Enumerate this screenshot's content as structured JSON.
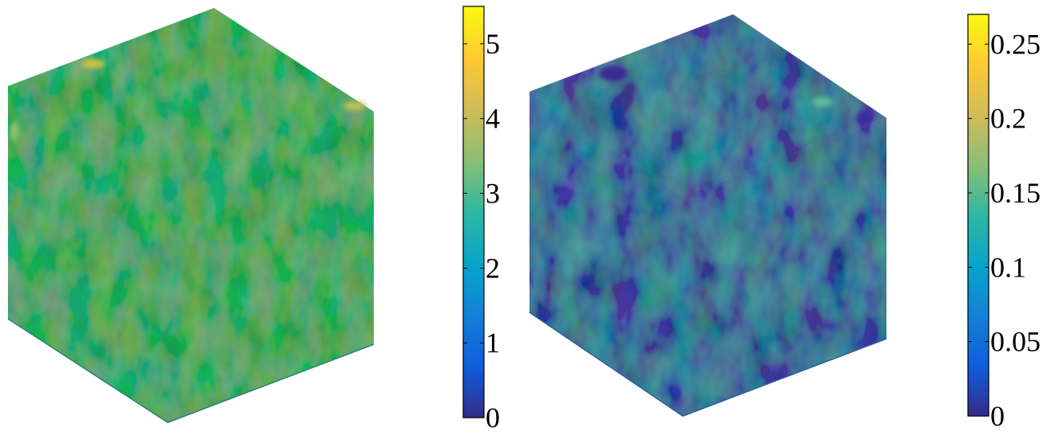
{
  "figure": {
    "panels": [
      {
        "name": "left-cube",
        "colorbar": {
          "range": [
            0,
            5.5
          ],
          "ticks": [
            {
              "value": 0,
              "label": "0"
            },
            {
              "value": 1,
              "label": "1"
            },
            {
              "value": 2,
              "label": "2"
            },
            {
              "value": 3,
              "label": "3"
            },
            {
              "value": 4,
              "label": "4"
            },
            {
              "value": 5,
              "label": "5"
            }
          ]
        },
        "base_color": "#2ab0b5"
      },
      {
        "name": "right-cube",
        "colorbar": {
          "range": [
            0,
            0.27
          ],
          "ticks": [
            {
              "value": 0,
              "label": "0"
            },
            {
              "value": 0.05,
              "label": "0.05"
            },
            {
              "value": 0.1,
              "label": "0.1"
            },
            {
              "value": 0.15,
              "label": "0.15"
            },
            {
              "value": 0.2,
              "label": "0.2"
            },
            {
              "value": 0.25,
              "label": "0.25"
            }
          ]
        },
        "base_color": "#3c86e3"
      }
    ],
    "colormap": "parula"
  }
}
